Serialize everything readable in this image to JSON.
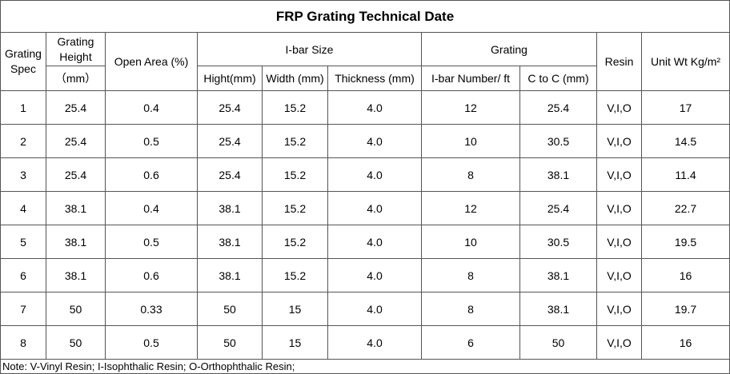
{
  "title": "FRP Grating Technical Date",
  "header": {
    "row1": [
      "Grating Spec",
      "Grating Height",
      "Open Area (%)",
      "I-bar Size",
      "Grating",
      "Resin",
      "Unit Wt Kg/m²"
    ],
    "row2": [
      "（mm）",
      "Hight(mm)",
      "Width (mm)",
      "Thickness (mm)",
      "I-bar Number/ ft",
      "C to C (mm)"
    ]
  },
  "table": {
    "rows": [
      [
        "1",
        "25.4",
        "0.4",
        "25.4",
        "15.2",
        "4.0",
        "12",
        "25.4",
        "V,I,O",
        "17"
      ],
      [
        "2",
        "25.4",
        "0.5",
        "25.4",
        "15.2",
        "4.0",
        "10",
        "30.5",
        "V,I,O",
        "14.5"
      ],
      [
        "3",
        "25.4",
        "0.6",
        "25.4",
        "15.2",
        "4.0",
        "8",
        "38.1",
        "V,I,O",
        "11.4"
      ],
      [
        "4",
        "38.1",
        "0.4",
        "38.1",
        "15.2",
        "4.0",
        "12",
        "25.4",
        "V,I,O",
        "22.7"
      ],
      [
        "5",
        "38.1",
        "0.5",
        "38.1",
        "15.2",
        "4.0",
        "10",
        "30.5",
        "V,I,O",
        "19.5"
      ],
      [
        "6",
        "38.1",
        "0.6",
        "38.1",
        "15.2",
        "4.0",
        "8",
        "38.1",
        "V,I,O",
        "16"
      ],
      [
        "7",
        "50",
        "0.33",
        "50",
        "15",
        "4.0",
        "8",
        "38.1",
        "V,I,O",
        "19.7"
      ],
      [
        "8",
        "50",
        "0.5",
        "50",
        "15",
        "4.0",
        "6",
        "50",
        "V,I,O",
        "16"
      ]
    ]
  },
  "note": "Note: V-Vinyl Resin; I-Isophthalic Resin; O-Orthophthalic Resin;"
}
